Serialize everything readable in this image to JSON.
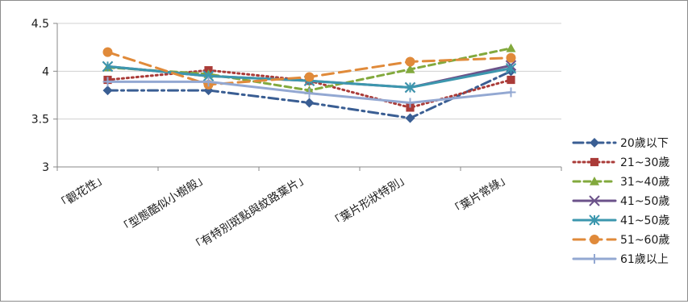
{
  "chart_data": {
    "type": "line",
    "categories": [
      "「觀花性」",
      "「型態酷似小樹般」",
      "「有特別斑點與紋路葉片」",
      "「葉片形狀特別」",
      "「葉片常綠」"
    ],
    "y_ticks": [
      "3",
      "3.5",
      "4",
      "4.5"
    ],
    "ylim": [
      3,
      4.5
    ],
    "grid": "horizontal",
    "legend_position": "right",
    "series": [
      {
        "name": "20歲以下",
        "values": [
          3.8,
          3.8,
          3.67,
          3.51,
          4.0
        ],
        "color": "#3a5e93",
        "dash": "12,5,3,5",
        "marker": "diamond"
      },
      {
        "name": "21~30歲",
        "values": [
          3.91,
          4.01,
          3.9,
          3.62,
          3.91
        ],
        "color": "#aa3b38",
        "dash": "2,4",
        "marker": "square"
      },
      {
        "name": "31~40歲",
        "values": [
          4.04,
          3.97,
          3.8,
          4.02,
          4.24
        ],
        "color": "#82a93d",
        "dash": "8,5",
        "marker": "triangle"
      },
      {
        "name": "41~50歲",
        "values": [
          4.05,
          3.95,
          3.9,
          3.83,
          4.06
        ],
        "color": "#6b528a",
        "dash": "",
        "marker": "x"
      },
      {
        "name": "41~50歲",
        "values": [
          4.05,
          3.95,
          3.9,
          3.83,
          4.03
        ],
        "color": "#3c97ae",
        "dash": "",
        "marker": "star"
      },
      {
        "name": "51~60歲",
        "values": [
          4.2,
          3.86,
          3.94,
          4.1,
          4.14
        ],
        "color": "#e08a3a",
        "dash": "14,7",
        "marker": "circle"
      },
      {
        "name": "61歲以上",
        "values": [
          3.89,
          3.89,
          3.77,
          3.67,
          3.78
        ],
        "color": "#93a8d2",
        "dash": "",
        "marker": "plus"
      }
    ]
  }
}
